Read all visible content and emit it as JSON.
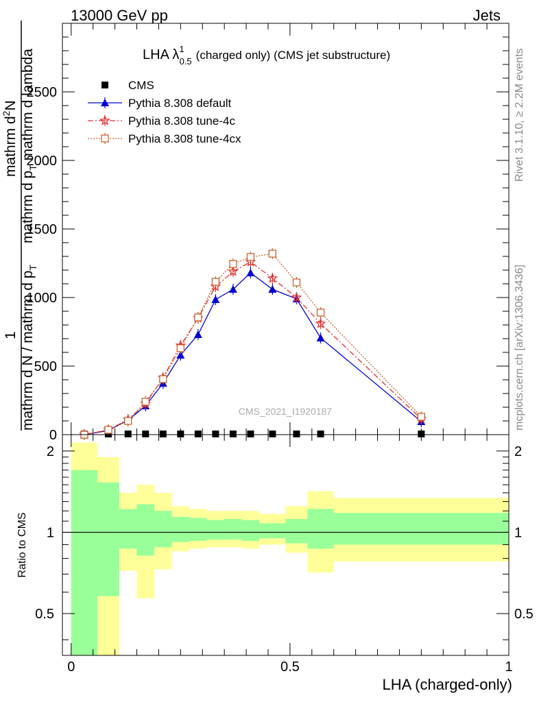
{
  "header": {
    "left": "13000 GeV pp",
    "right": "Jets"
  },
  "side": {
    "rivet": "Rivet 3.1.10, ≥ 2.2M events",
    "mcplots": "mcplots.cern.ch [arXiv:1306.3436]"
  },
  "chart_data": [
    {
      "type": "line",
      "title_main": "LHA λ",
      "title_sup": "1",
      "title_sub": "0.5",
      "title_rest": "(charged only) (CMS jet substructure)",
      "watermark": "CMS_2021_I1920187",
      "ylabel_top_num": "mathrm d",
      "ylabel_top_sup": "2",
      "ylabel_top_N": "N",
      "ylabel_top_den_a": "mathrm d p",
      "ylabel_top_den_sub": "T",
      "ylabel_top_den_b": "mathrm d lambda",
      "ylabel_bottom_num": "1",
      "ylabel_bottom_den": "mathrm d N / mathrm d p",
      "ylabel_bottom_den_sub": "T",
      "ylim": [
        0,
        3000
      ],
      "xlim": [
        -0.02,
        1.0
      ],
      "yticks": [
        0,
        500,
        1000,
        1500,
        2000,
        2500
      ],
      "ytick_labels": [
        "0",
        "500",
        "1000",
        "1500",
        "2000",
        "2500"
      ],
      "legend_position": "top-left",
      "x": [
        0.03,
        0.085,
        0.13,
        0.17,
        0.21,
        0.25,
        0.29,
        0.33,
        0.37,
        0.41,
        0.46,
        0.515,
        0.57,
        0.8
      ],
      "series": [
        {
          "name": "CMS",
          "color": "#000000",
          "marker": "square",
          "values": [
            0,
            0,
            0,
            0,
            0,
            0,
            0,
            0,
            0,
            0,
            0,
            0,
            0,
            0
          ]
        },
        {
          "name": "Pythia 8.308 default",
          "color": "#0000d0",
          "marker": "triangle",
          "values": [
            0,
            30,
            105,
            210,
            375,
            580,
            730,
            985,
            1060,
            1180,
            1060,
            990,
            705,
            95
          ]
        },
        {
          "name": "Pythia 8.308 tune-4c",
          "color": "#e03030",
          "marker": "star",
          "values": [
            0,
            35,
            110,
            225,
            415,
            650,
            850,
            1080,
            1190,
            1260,
            1140,
            1000,
            810,
            115
          ]
        },
        {
          "name": "Pythia 8.308 tune-4cx",
          "color": "#c8602a",
          "marker": "open-square",
          "values": [
            0,
            35,
            100,
            240,
            405,
            630,
            855,
            1115,
            1245,
            1295,
            1320,
            1110,
            890,
            130
          ]
        }
      ]
    },
    {
      "type": "area",
      "ylabel": "Ratio to CMS",
      "xlabel": "LHA (charged-only)",
      "ylim": [
        0.35,
        2.3
      ],
      "xlim": [
        -0.02,
        1.0
      ],
      "yticks": [
        0.5,
        1,
        2
      ],
      "ytick_labels": [
        "0.5",
        "1",
        "2"
      ],
      "xticks": [
        0,
        0.5,
        1
      ],
      "xtick_labels": [
        "0",
        "0.5",
        "1"
      ],
      "reference_line": 1,
      "bins": [
        {
          "x0": 0.0,
          "x1": 0.06,
          "inner": [
            0.35,
            1.7
          ],
          "outer": [
            0.35,
            2.15
          ]
        },
        {
          "x0": 0.06,
          "x1": 0.11,
          "inner": [
            0.58,
            1.53
          ],
          "outer": [
            0.35,
            1.9
          ]
        },
        {
          "x0": 0.11,
          "x1": 0.15,
          "inner": [
            0.87,
            1.22
          ],
          "outer": [
            0.72,
            1.4
          ]
        },
        {
          "x0": 0.15,
          "x1": 0.19,
          "inner": [
            0.82,
            1.27
          ],
          "outer": [
            0.57,
            1.5
          ]
        },
        {
          "x0": 0.19,
          "x1": 0.23,
          "inner": [
            0.88,
            1.2
          ],
          "outer": [
            0.73,
            1.4
          ]
        },
        {
          "x0": 0.23,
          "x1": 0.27,
          "inner": [
            0.92,
            1.14
          ],
          "outer": [
            0.85,
            1.25
          ]
        },
        {
          "x0": 0.27,
          "x1": 0.31,
          "inner": [
            0.93,
            1.13
          ],
          "outer": [
            0.87,
            1.22
          ]
        },
        {
          "x0": 0.31,
          "x1": 0.35,
          "inner": [
            0.94,
            1.11
          ],
          "outer": [
            0.88,
            1.2
          ]
        },
        {
          "x0": 0.35,
          "x1": 0.39,
          "inner": [
            0.94,
            1.12
          ],
          "outer": [
            0.88,
            1.2
          ]
        },
        {
          "x0": 0.39,
          "x1": 0.43,
          "inner": [
            0.93,
            1.11
          ],
          "outer": [
            0.87,
            1.2
          ]
        },
        {
          "x0": 0.43,
          "x1": 0.49,
          "inner": [
            0.95,
            1.08
          ],
          "outer": [
            0.9,
            1.17
          ]
        },
        {
          "x0": 0.49,
          "x1": 0.54,
          "inner": [
            0.91,
            1.12
          ],
          "outer": [
            0.84,
            1.25
          ]
        },
        {
          "x0": 0.54,
          "x1": 0.6,
          "inner": [
            0.87,
            1.22
          ],
          "outer": [
            0.71,
            1.42
          ]
        },
        {
          "x0": 0.6,
          "x1": 1.0,
          "inner": [
            0.9,
            1.18
          ],
          "outer": [
            0.78,
            1.34
          ]
        }
      ],
      "inner_color": "#99ff99",
      "outer_color": "#ffff99"
    }
  ]
}
